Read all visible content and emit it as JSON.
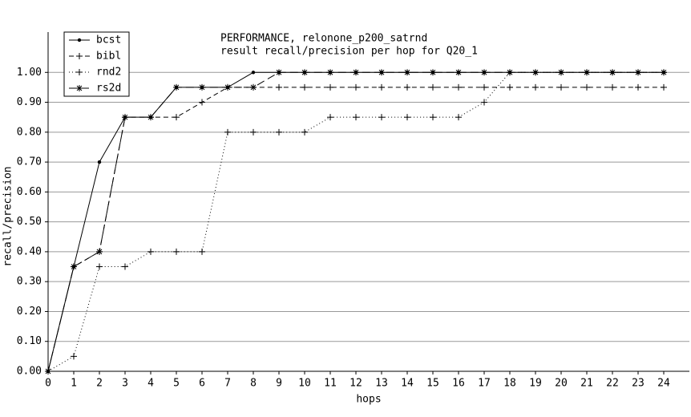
{
  "chart_data": {
    "type": "line",
    "title": "PERFORMANCE, relonone_p200_satrnd",
    "subtitle": "result recall/precision per hop for Q20_1",
    "x_label": "hops",
    "y_label": "recall/precision",
    "x": [
      0,
      1,
      2,
      3,
      4,
      5,
      6,
      7,
      8,
      9,
      10,
      11,
      12,
      13,
      14,
      15,
      16,
      17,
      18,
      19,
      20,
      21,
      22,
      23,
      24
    ],
    "xlim": [
      0,
      25
    ],
    "xticks": [
      0,
      1,
      2,
      3,
      4,
      5,
      6,
      7,
      8,
      9,
      10,
      11,
      12,
      13,
      14,
      15,
      16,
      17,
      18,
      19,
      20,
      21,
      22,
      23,
      24
    ],
    "ylim": [
      0,
      1.1
    ],
    "yticks": [
      {
        "value": 0,
        "label": "0.00"
      },
      {
        "value": 0.1,
        "label": "0.10"
      },
      {
        "value": 0.2,
        "label": "0.20"
      },
      {
        "value": 0.3,
        "label": "0.30"
      },
      {
        "value": 0.4,
        "label": "0.40"
      },
      {
        "value": 0.5,
        "label": "0.50"
      },
      {
        "value": 0.6,
        "label": "0.60"
      },
      {
        "value": 0.7,
        "label": "0.70"
      },
      {
        "value": 0.8,
        "label": "0.80"
      },
      {
        "value": 0.9,
        "label": "0.90"
      },
      {
        "value": 1,
        "label": "1.00"
      }
    ],
    "grid": true,
    "legend": "upper-left",
    "series": [
      {
        "name": "bcst",
        "color": "#000000",
        "line_style": "solid",
        "marker": "dot",
        "values": [
          0,
          0.35,
          0.7,
          0.85,
          0.85,
          0.95,
          0.95,
          0.95,
          1,
          1,
          1,
          1,
          1,
          1,
          1,
          1,
          1,
          1,
          1,
          1,
          1,
          1,
          1,
          1,
          1
        ]
      },
      {
        "name": "bibl",
        "color": "#000000",
        "line_style": "dashed",
        "marker": "plus",
        "values": [
          0,
          0.35,
          0.4,
          0.85,
          0.85,
          0.85,
          0.9,
          0.95,
          0.95,
          0.95,
          0.95,
          0.95,
          0.95,
          0.95,
          0.95,
          0.95,
          0.95,
          0.95,
          0.95,
          0.95,
          0.95,
          0.95,
          0.95,
          0.95,
          0.95
        ]
      },
      {
        "name": "rnd2",
        "color": "#000000",
        "line_style": "dotted",
        "marker": "plus",
        "values": [
          0,
          0.05,
          0.35,
          0.35,
          0.4,
          0.4,
          0.4,
          0.8,
          0.8,
          0.8,
          0.8,
          0.85,
          0.85,
          0.85,
          0.85,
          0.85,
          0.85,
          0.9,
          1,
          1,
          1,
          1,
          1,
          1,
          1
        ]
      },
      {
        "name": "rs2d",
        "color": "#000000",
        "line_style": "longdash",
        "marker": "star",
        "values": [
          0,
          0.35,
          0.4,
          0.85,
          0.85,
          0.95,
          0.95,
          0.95,
          0.95,
          1,
          1,
          1,
          1,
          1,
          1,
          1,
          1,
          1,
          1,
          1,
          1,
          1,
          1,
          1,
          1
        ]
      }
    ]
  }
}
